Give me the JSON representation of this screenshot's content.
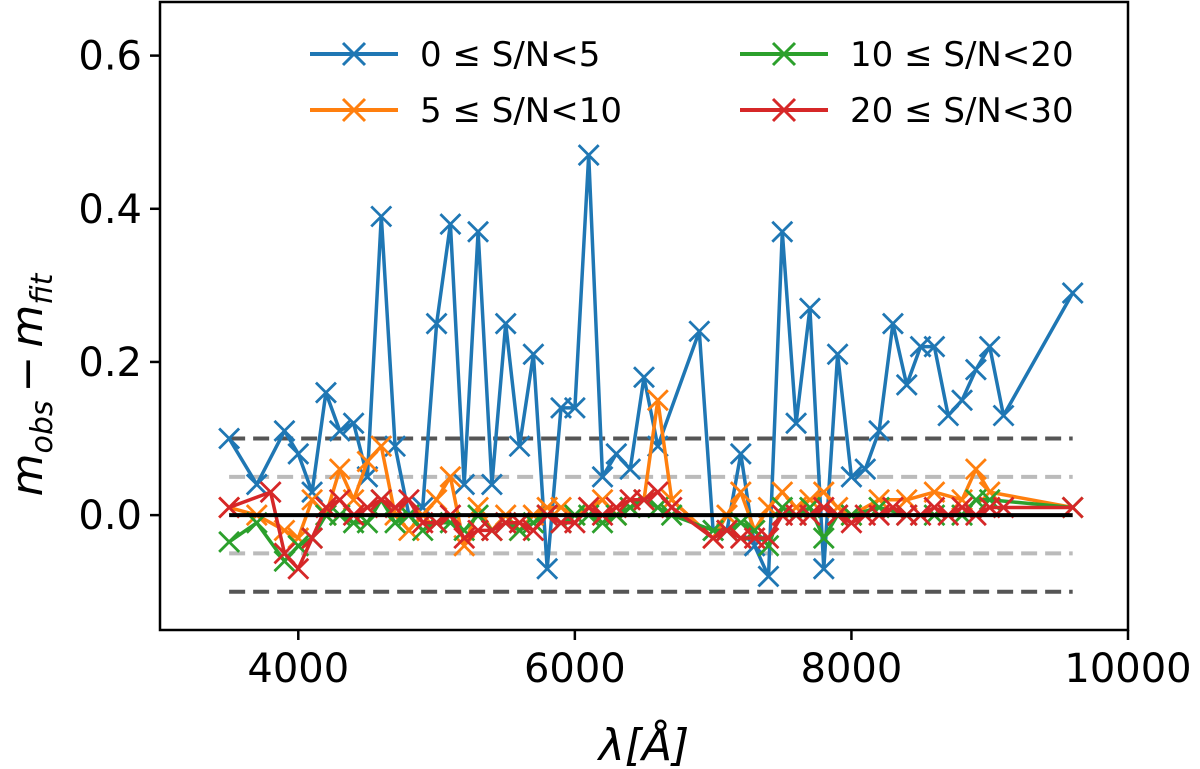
{
  "chart_data": {
    "type": "line",
    "xlabel": "λ[Å]",
    "ylabel": "m_obs − m_fit",
    "ylabel_main": "m",
    "ylabel_sub1": "obs",
    "ylabel_minus": "−",
    "ylabel_main2": "m",
    "ylabel_sub2": "fit",
    "xlim": [
      3000,
      10000
    ],
    "ylim": [
      -0.15,
      0.67
    ],
    "xticks": [
      4000,
      6000,
      8000,
      10000
    ],
    "xtick_labels": [
      "4000",
      "6000",
      "8000",
      "10000"
    ],
    "yticks": [
      0.0,
      0.2,
      0.4,
      0.6
    ],
    "ytick_labels": [
      "0.0",
      "0.2",
      "0.4",
      "0.6"
    ],
    "legend_position": "top",
    "reference_lines": [
      {
        "y": 0.0,
        "style": "solid",
        "color": "#000000"
      },
      {
        "y": 0.1,
        "style": "dashed",
        "color": "#555555"
      },
      {
        "y": -0.1,
        "style": "dashed",
        "color": "#555555"
      },
      {
        "y": 0.05,
        "style": "dashed",
        "color": "#bbbbbb"
      },
      {
        "y": -0.05,
        "style": "dashed",
        "color": "#bbbbbb"
      }
    ],
    "reference_range_x": [
      3500,
      9600
    ],
    "series": [
      {
        "name": "0 ≤  S/N<5",
        "color": "#1f77b4",
        "x": [
          3500,
          3700,
          3900,
          4000,
          4100,
          4200,
          4300,
          4400,
          4500,
          4600,
          4700,
          4800,
          4900,
          5000,
          5100,
          5200,
          5300,
          5400,
          5500,
          5600,
          5700,
          5800,
          5900,
          6000,
          6100,
          6200,
          6300,
          6400,
          6500,
          6600,
          6900,
          7000,
          7100,
          7200,
          7300,
          7400,
          7500,
          7600,
          7700,
          7800,
          7900,
          8000,
          8100,
          8200,
          8300,
          8400,
          8500,
          8600,
          8700,
          8800,
          8900,
          9000,
          9100,
          9600
        ],
        "y": [
          0.1,
          0.04,
          0.11,
          0.08,
          0.03,
          0.16,
          0.11,
          0.12,
          0.05,
          0.39,
          0.09,
          0.0,
          0.01,
          0.25,
          0.38,
          0.04,
          0.37,
          0.04,
          0.25,
          0.09,
          0.21,
          -0.07,
          0.14,
          0.14,
          0.47,
          0.05,
          0.08,
          0.06,
          0.18,
          0.09,
          0.24,
          -0.02,
          -0.02,
          0.08,
          -0.04,
          -0.08,
          0.37,
          0.12,
          0.27,
          -0.07,
          0.21,
          0.05,
          0.06,
          0.11,
          0.25,
          0.17,
          0.22,
          0.22,
          0.13,
          0.15,
          0.19,
          0.22,
          0.13,
          0.29
        ]
      },
      {
        "name": "5 ≤  S/N<10",
        "color": "#ff7f0e",
        "x": [
          3500,
          3700,
          3900,
          4000,
          4100,
          4200,
          4300,
          4400,
          4500,
          4600,
          4700,
          4800,
          4900,
          5000,
          5100,
          5200,
          5300,
          5400,
          5500,
          5600,
          5700,
          5800,
          5900,
          6000,
          6100,
          6200,
          6300,
          6400,
          6500,
          6600,
          6700,
          7000,
          7100,
          7200,
          7300,
          7400,
          7500,
          7600,
          7700,
          7800,
          7900,
          8000,
          8200,
          8400,
          8600,
          8800,
          8900,
          9000,
          9600
        ],
        "y": [
          0.01,
          0.0,
          -0.02,
          -0.03,
          0.02,
          0.0,
          0.06,
          0.02,
          0.07,
          0.09,
          0.0,
          -0.02,
          0.0,
          0.02,
          0.05,
          -0.04,
          0.01,
          -0.02,
          0.0,
          -0.02,
          0.0,
          0.01,
          0.01,
          0.0,
          0.01,
          0.02,
          0.0,
          0.01,
          0.02,
          0.15,
          0.02,
          -0.03,
          0.0,
          0.03,
          -0.02,
          0.01,
          0.03,
          0.01,
          0.02,
          0.03,
          0.01,
          0.0,
          0.02,
          0.02,
          0.03,
          0.02,
          0.06,
          0.03,
          0.01
        ]
      },
      {
        "name": "10 ≤  S/N<20",
        "color": "#2ca02c",
        "x": [
          3500,
          3700,
          3900,
          4000,
          4100,
          4200,
          4300,
          4400,
          4500,
          4600,
          4700,
          4800,
          4900,
          5000,
          5100,
          5200,
          5300,
          5400,
          5500,
          5600,
          5700,
          5800,
          5900,
          6000,
          6100,
          6200,
          6300,
          6400,
          6500,
          6600,
          6700,
          7000,
          7100,
          7200,
          7300,
          7400,
          7500,
          7600,
          7700,
          7800,
          7900,
          8000,
          8200,
          8400,
          8600,
          8800,
          8900,
          9000,
          9600
        ],
        "y": [
          -0.035,
          -0.01,
          -0.06,
          -0.04,
          -0.03,
          0.0,
          0.0,
          -0.01,
          -0.01,
          0.02,
          -0.01,
          0.0,
          -0.02,
          -0.01,
          -0.01,
          -0.02,
          0.0,
          -0.02,
          -0.01,
          -0.02,
          -0.01,
          0.0,
          -0.01,
          0.0,
          0.0,
          -0.01,
          0.0,
          0.01,
          0.02,
          0.01,
          0.0,
          -0.02,
          -0.02,
          -0.01,
          -0.02,
          -0.04,
          0.01,
          0.0,
          0.01,
          -0.03,
          0.0,
          0.0,
          0.01,
          0.0,
          0.0,
          0.0,
          0.02,
          0.02,
          0.01
        ]
      },
      {
        "name": "20 ≤  S/N<30",
        "color": "#d62728",
        "x": [
          3500,
          3800,
          3900,
          4000,
          4100,
          4200,
          4300,
          4400,
          4500,
          4600,
          4700,
          4800,
          4900,
          5000,
          5100,
          5200,
          5300,
          5400,
          5500,
          5600,
          5700,
          5800,
          5900,
          6000,
          6100,
          6200,
          6300,
          6400,
          6500,
          6600,
          6700,
          7000,
          7100,
          7200,
          7300,
          7400,
          7500,
          7600,
          7700,
          7800,
          7900,
          8000,
          8100,
          8200,
          8300,
          8400,
          8500,
          8600,
          8700,
          8800,
          8900,
          9000,
          9100,
          9600
        ],
        "y": [
          0.01,
          0.03,
          -0.05,
          -0.07,
          -0.03,
          0.01,
          0.02,
          0.0,
          0.01,
          0.02,
          0.01,
          0.02,
          -0.01,
          -0.01,
          0.0,
          -0.03,
          -0.02,
          -0.02,
          -0.01,
          -0.01,
          -0.02,
          0.0,
          -0.01,
          -0.01,
          0.01,
          0.0,
          0.01,
          0.02,
          0.02,
          0.03,
          0.01,
          -0.03,
          -0.02,
          -0.03,
          -0.03,
          -0.03,
          0.0,
          0.0,
          0.0,
          0.01,
          0.0,
          -0.01,
          0.0,
          0.0,
          0.01,
          0.0,
          0.0,
          0.01,
          0.0,
          0.01,
          0.0,
          0.01,
          0.01,
          0.01
        ]
      }
    ]
  }
}
